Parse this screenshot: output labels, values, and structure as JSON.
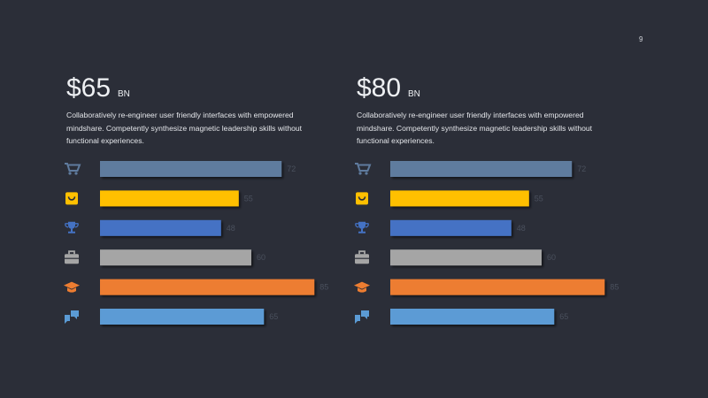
{
  "page_number": "9",
  "chart_data": [
    {
      "type": "bar",
      "orientation": "horizontal",
      "title": "$65",
      "unit": "BN",
      "description": "Collaboratively re-engineer user friendly interfaces with empowered mindshare. Competently synthesize magnetic leadership skills without functional experiences.",
      "categories": [
        null,
        null,
        null,
        null,
        null,
        null
      ],
      "values": [
        72,
        55,
        48,
        60,
        85,
        65
      ],
      "colors": [
        "#5f7b9e",
        "#ffc000",
        "#4472c4",
        "#a5a5a5",
        "#ed7d31",
        "#5b9bd5"
      ],
      "xlim": [
        0,
        100
      ]
    },
    {
      "type": "bar",
      "orientation": "horizontal",
      "title": "$80",
      "unit": "BN",
      "description": "Collaboratively re-engineer user friendly interfaces with empowered mindshare. Competently synthesize magnetic leadership skills without functional experiences.",
      "categories": [
        null,
        null,
        null,
        null,
        null,
        null
      ],
      "values": [
        72,
        55,
        48,
        60,
        85,
        65
      ],
      "colors": [
        "#5f7b9e",
        "#ffc000",
        "#4472c4",
        "#a5a5a5",
        "#ed7d31",
        "#5b9bd5"
      ],
      "xlim": [
        0,
        100
      ]
    }
  ]
}
